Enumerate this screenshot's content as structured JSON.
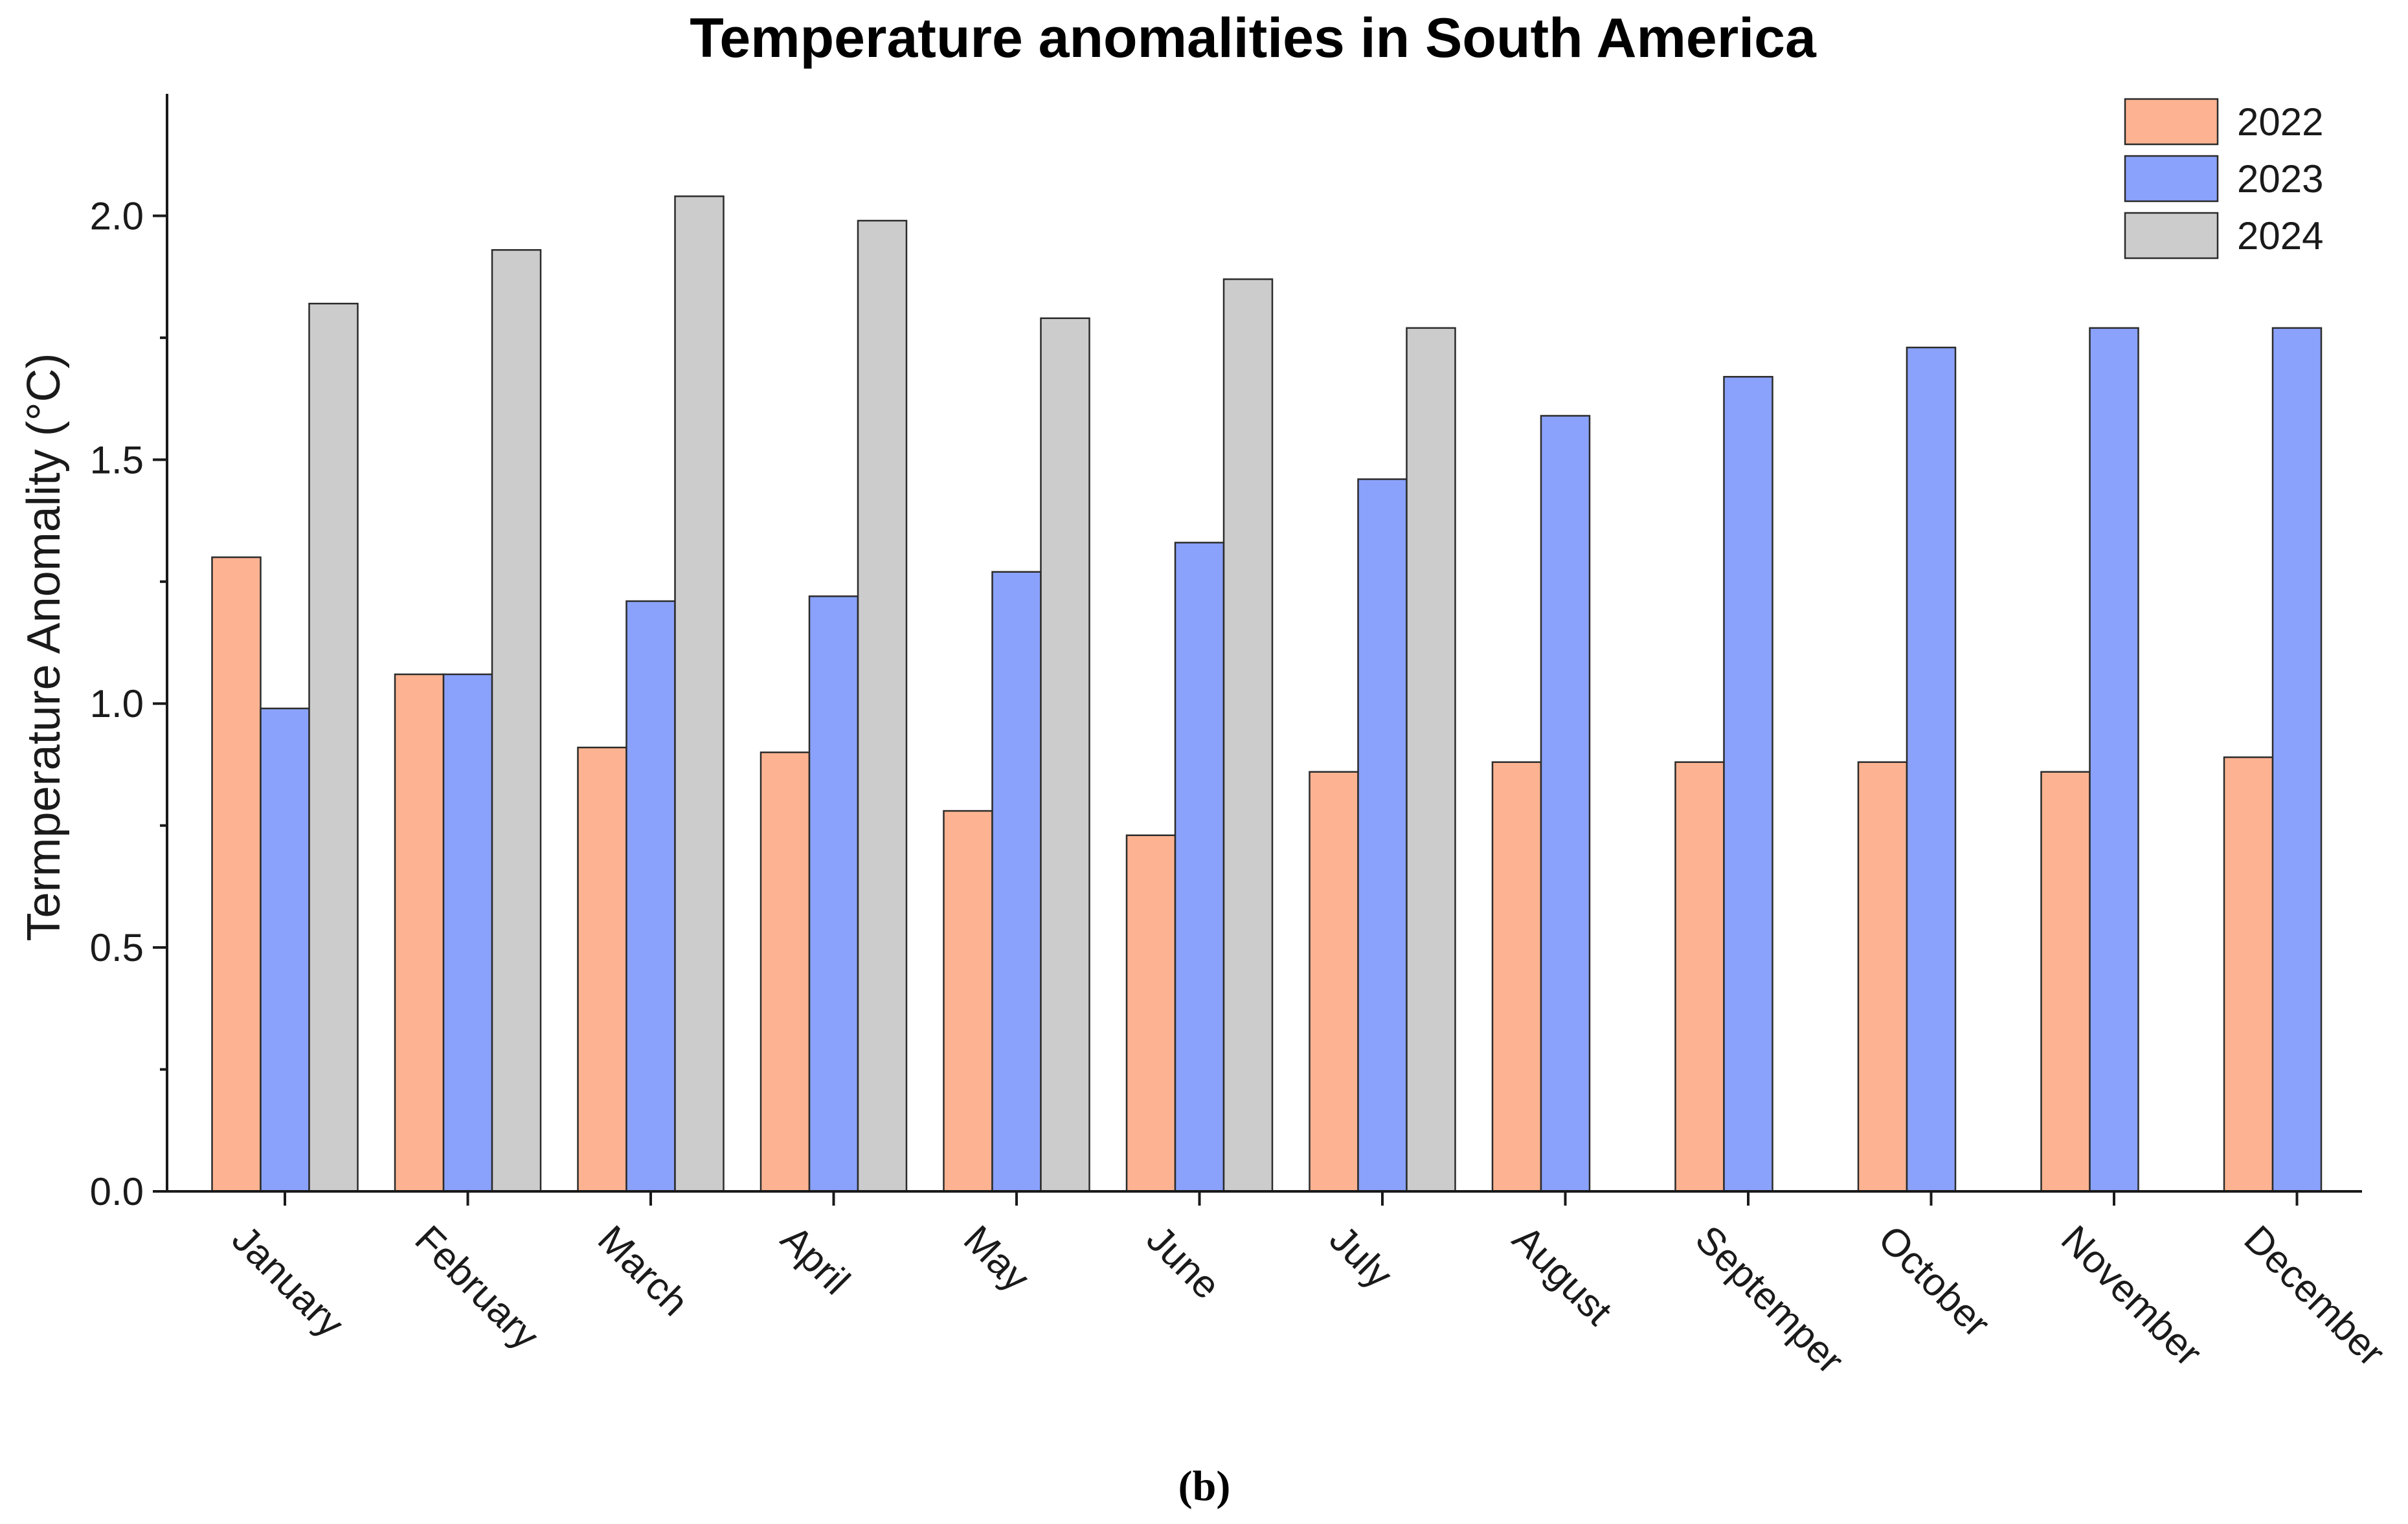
{
  "chart_data": {
    "type": "bar",
    "title": "Temperature anomalities in South America",
    "xlabel": "",
    "ylabel": "Termperature Anomality (°C)",
    "ylim": [
      0,
      2.25
    ],
    "yticks": [
      "0.0",
      "0.5",
      "1.0",
      "1.5",
      "2.0"
    ],
    "legend_position": "top-right",
    "categories": [
      "January",
      "February",
      "March",
      "April",
      "May",
      "June",
      "July",
      "August",
      "Septemper",
      "October",
      "November",
      "December"
    ],
    "series": [
      {
        "name": "2022",
        "color": "#fdb391",
        "values": [
          1.3,
          1.06,
          0.91,
          0.9,
          0.78,
          0.73,
          0.86,
          0.88,
          0.88,
          0.88,
          0.86,
          0.89
        ]
      },
      {
        "name": "2023",
        "color": "#8aa2fb",
        "values": [
          0.99,
          1.06,
          1.21,
          1.22,
          1.27,
          1.33,
          1.46,
          1.59,
          1.67,
          1.73,
          1.77,
          1.77
        ]
      },
      {
        "name": "2024",
        "color": "#cccccc",
        "values": [
          1.82,
          1.93,
          2.04,
          1.99,
          1.79,
          1.87,
          1.77,
          null,
          null,
          null,
          null,
          null
        ]
      }
    ]
  },
  "caption": "(b)"
}
